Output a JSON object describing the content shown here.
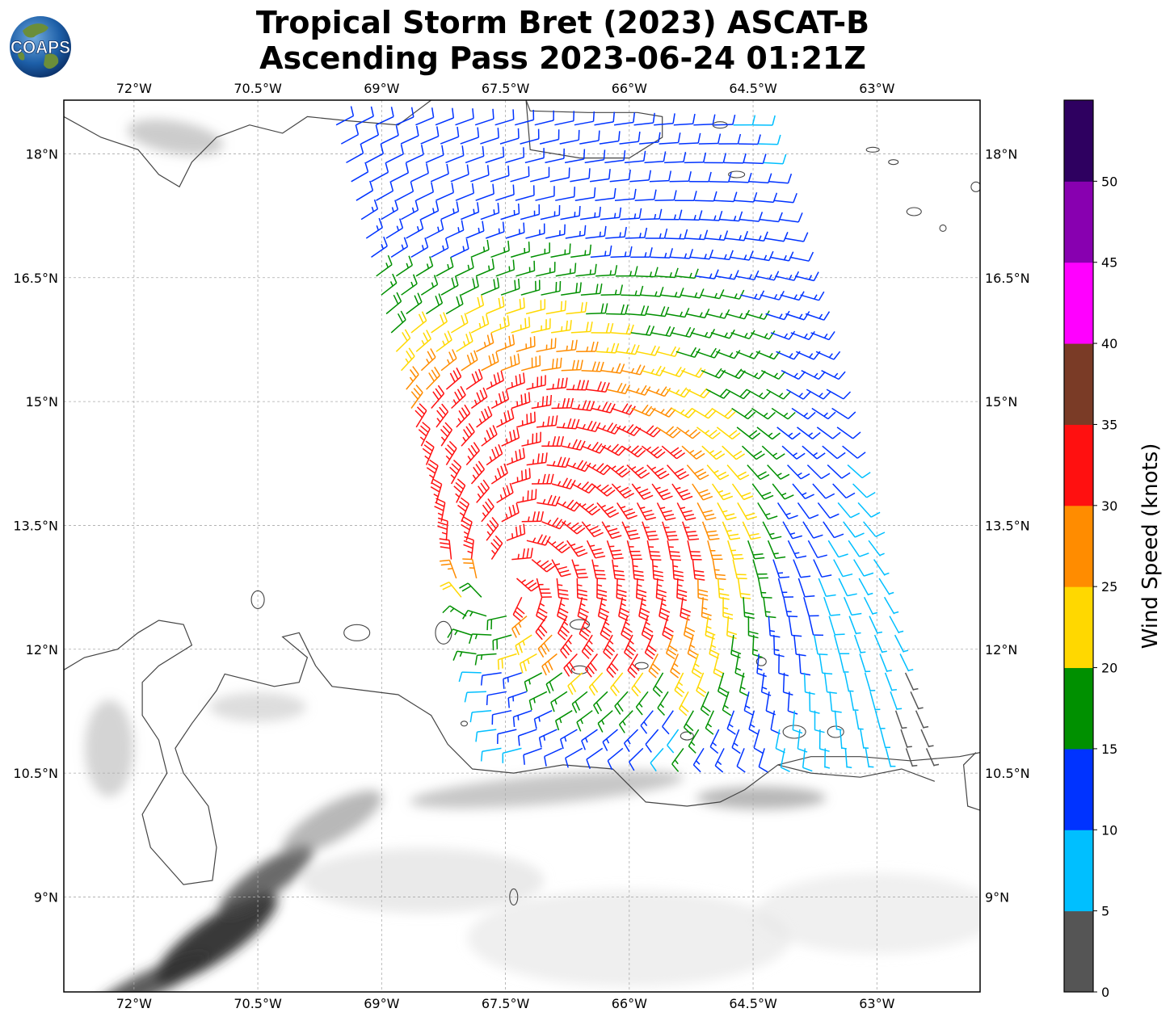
{
  "title": {
    "line1": "Tropical Storm Bret (2023) ASCAT-B",
    "line2": "Ascending Pass 2023-06-24 01:21Z"
  },
  "logo": {
    "text": "COAPS",
    "icon": "globe-icon"
  },
  "map": {
    "projection": "PlateCarree",
    "lon_range": [
      -72.85,
      -61.75
    ],
    "lat_range": [
      7.85,
      18.65
    ],
    "grid": true,
    "lon_ticks": [
      {
        "value": -72.0,
        "label": "72°W"
      },
      {
        "value": -70.5,
        "label": "70.5°W"
      },
      {
        "value": -69.0,
        "label": "69°W"
      },
      {
        "value": -67.5,
        "label": "67.5°W"
      },
      {
        "value": -66.0,
        "label": "66°W"
      },
      {
        "value": -64.5,
        "label": "64.5°W"
      },
      {
        "value": -63.0,
        "label": "63°W"
      }
    ],
    "lat_ticks": [
      {
        "value": 18.0,
        "label": "18°N"
      },
      {
        "value": 16.5,
        "label": "16.5°N"
      },
      {
        "value": 15.0,
        "label": "15°N"
      },
      {
        "value": 13.5,
        "label": "13.5°N"
      },
      {
        "value": 12.0,
        "label": "12°N"
      },
      {
        "value": 10.5,
        "label": "10.5°N"
      },
      {
        "value": 9.0,
        "label": "9°N"
      }
    ],
    "storm_center": {
      "lon": -67.5,
      "lat": 12.7
    },
    "swath_corners": [
      [
        -69.55,
        18.35
      ],
      [
        -64.5,
        18.35
      ],
      [
        -62.4,
        10.8
      ],
      [
        -67.55,
        10.8
      ]
    ],
    "background": "grayscale-terrain"
  },
  "colorbar": {
    "label": "Wind Speed (knots)",
    "bounds": [
      0,
      5,
      10,
      15,
      20,
      25,
      30,
      35,
      40,
      45,
      50,
      55
    ],
    "tick_labels": [
      "0",
      "5",
      "10",
      "15",
      "20",
      "25",
      "30",
      "35",
      "40",
      "45",
      "50"
    ],
    "colors": [
      "#555555",
      "#00bfff",
      "#0033ff",
      "#009000",
      "#ffd800",
      "#ff8c00",
      "#ff1010",
      "#7a3b26",
      "#ff00ff",
      "#8800b0",
      "#2e0060"
    ]
  }
}
